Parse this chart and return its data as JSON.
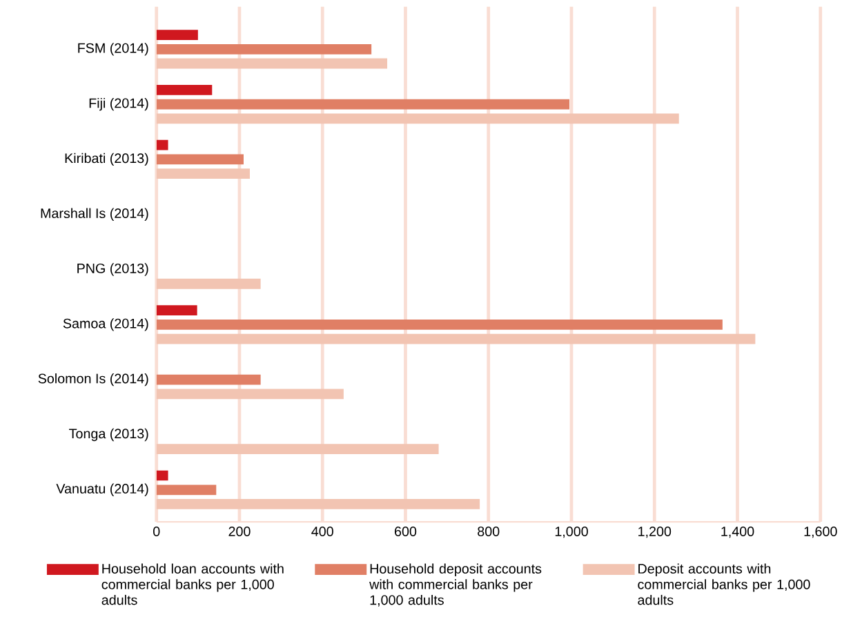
{
  "chart_data": {
    "type": "bar",
    "orientation": "horizontal",
    "categories": [
      "FSM (2014)",
      "Fiji (2014)",
      "Kiribati (2013)",
      "Marshall Is (2014)",
      "PNG (2013)",
      "Samoa (2014)",
      "Solomon Is (2014)",
      "Tonga (2013)",
      "Vanuatu (2014)"
    ],
    "series": [
      {
        "name": "Household loan accounts with commercial banks per 1,000 adults",
        "color": "#d0181f",
        "values": [
          100,
          134,
          28,
          null,
          null,
          98,
          null,
          null,
          28
        ]
      },
      {
        "name": "Household deposit accounts with commercial banks per 1,000 adults",
        "color": "#e07f65",
        "values": [
          518,
          995,
          210,
          null,
          null,
          1364,
          251,
          null,
          144
        ]
      },
      {
        "name": "Deposit accounts with commercial banks per 1,000 adults",
        "color": "#f2c4b2",
        "values": [
          556,
          1259,
          225,
          null,
          251,
          1443,
          451,
          680,
          779
        ]
      }
    ],
    "xlim": [
      0,
      1600
    ],
    "xticks": [
      0,
      {
        "value": 200,
        "label": "200"
      },
      {
        "value": 400,
        "label": "400"
      },
      {
        "value": 600,
        "label": "600"
      },
      {
        "value": 800,
        "label": "800"
      },
      {
        "value": 1000,
        "label": "1,000"
      },
      {
        "value": 1200,
        "label": "1,200"
      },
      {
        "value": 1400,
        "label": "1,400"
      },
      {
        "value": 1600,
        "label": "1,600"
      }
    ],
    "grid": "x",
    "legend": "bottom"
  }
}
